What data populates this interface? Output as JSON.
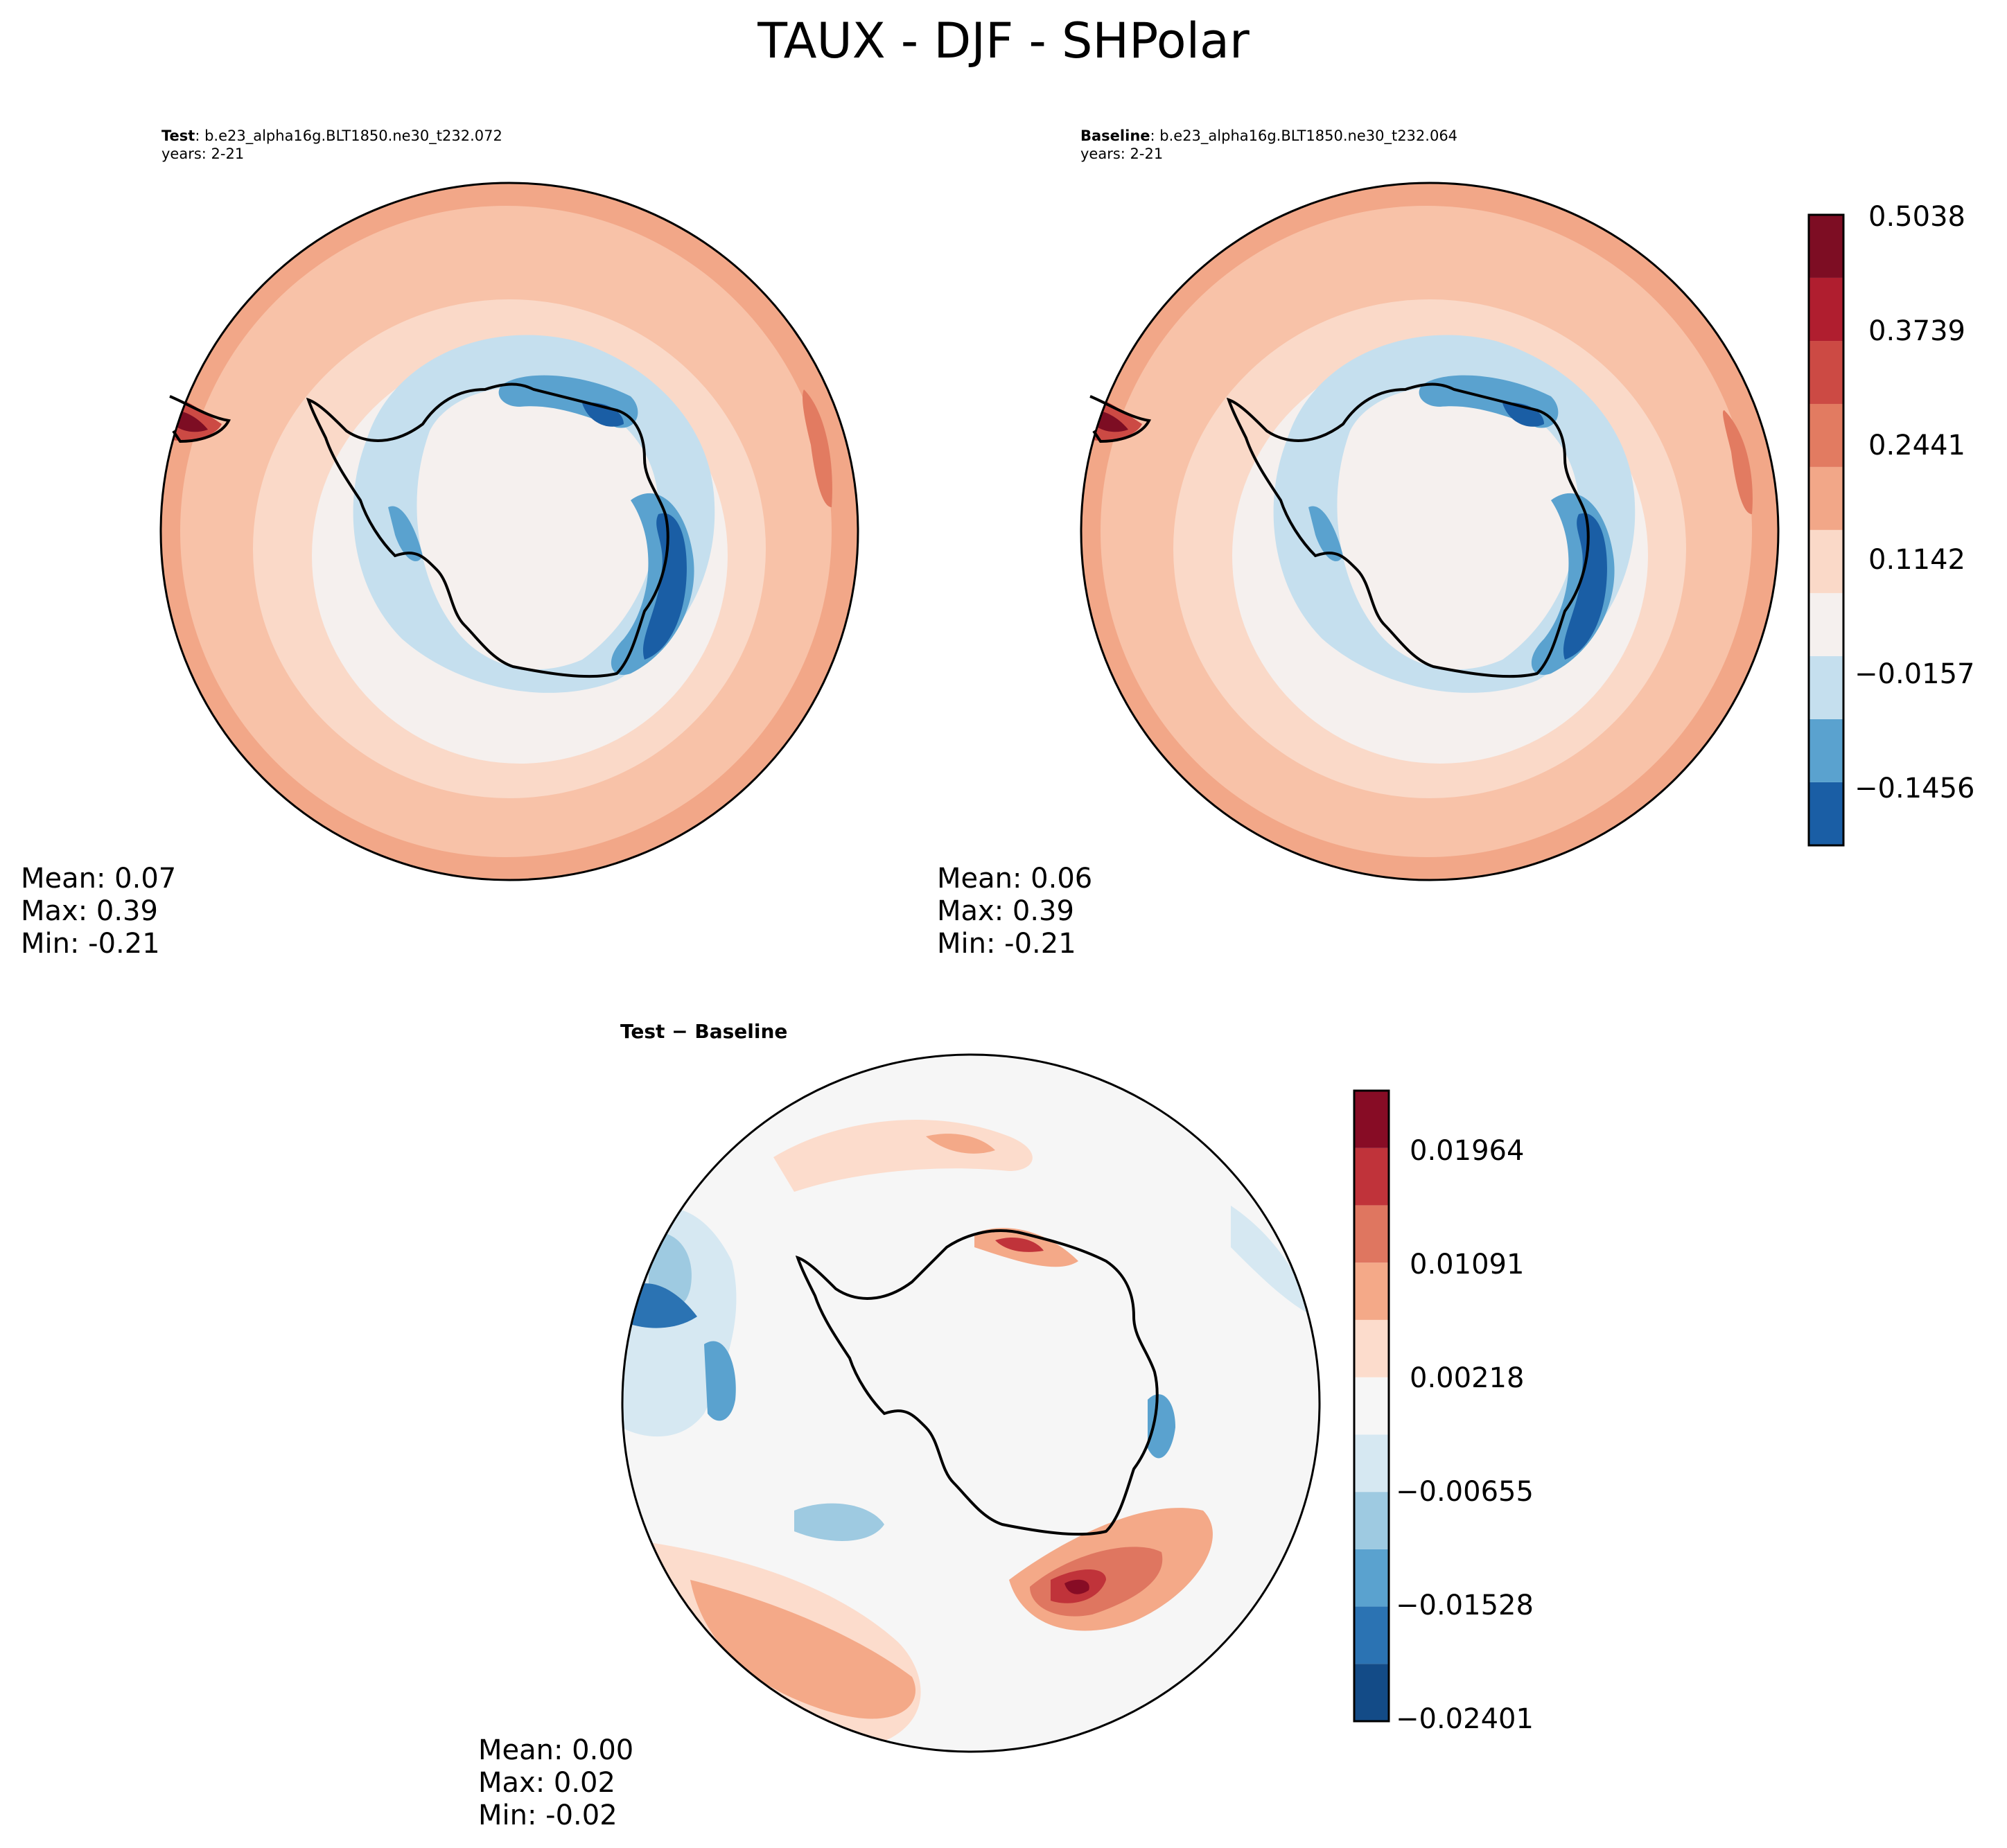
{
  "figure": {
    "title": "TAUX - DJF - SHPolar"
  },
  "panels": {
    "test": {
      "label": "Test",
      "case": ": b.e23_alpha16g.BLT1850.ne30_t232.072",
      "years": "years: 2-21",
      "stats": {
        "mean": "Mean:  0.07",
        "max": "Max:  0.39",
        "min": "Min: -0.21"
      }
    },
    "baseline": {
      "label": "Baseline",
      "case": ": b.e23_alpha16g.BLT1850.ne30_t232.064",
      "years": "years: 2-21",
      "stats": {
        "mean": "Mean:  0.06",
        "max": "Max:  0.39",
        "min": "Min: -0.21"
      }
    },
    "diff": {
      "title": "Test − Baseline",
      "stats": {
        "mean": "Mean:  0.00",
        "max": "Max:  0.02",
        "min": "Min: -0.02"
      }
    }
  },
  "chart_data": [
    {
      "type": "contour-map",
      "projection": "south-polar-stereographic",
      "title": "Test: b.e23_alpha16g.BLT1850.ne30_t232.072",
      "variable": "TAUX",
      "season": "DJF",
      "mean": 0.07,
      "max": 0.39,
      "min": -0.21,
      "levels": [
        -0.2105,
        -0.1456,
        -0.0806,
        -0.0157,
        0.0493,
        0.1142,
        0.1792,
        0.2441,
        0.309,
        0.3739,
        0.4389,
        0.5038
      ],
      "ticks": [
        "0.5038",
        "0.3739",
        "0.2441",
        "0.1142",
        "−0.0157",
        "−0.1456"
      ],
      "colors": [
        "#1a5ea5",
        "#5aa2cf",
        "#c5dfee",
        "#f5f0ee",
        "#fad9c8",
        "#f2a788",
        "#e27b61",
        "#cc4a44",
        "#b01e2f",
        "#7d0d23"
      ]
    },
    {
      "type": "contour-map",
      "projection": "south-polar-stereographic",
      "title": "Baseline: b.e23_alpha16g.BLT1850.ne30_t232.064",
      "variable": "TAUX",
      "season": "DJF",
      "mean": 0.06,
      "max": 0.39,
      "min": -0.21,
      "levels": [
        -0.2105,
        -0.1456,
        -0.0806,
        -0.0157,
        0.0493,
        0.1142,
        0.1792,
        0.2441,
        0.309,
        0.3739,
        0.4389,
        0.5038
      ]
    },
    {
      "type": "contour-map",
      "projection": "south-polar-stereographic",
      "title": "Test − Baseline",
      "mean": 0.0,
      "max": 0.02,
      "min": -0.02,
      "levels": [
        -0.02401,
        -0.01964,
        -0.01528,
        -0.01091,
        -0.00655,
        -0.00218,
        0.00218,
        0.00655,
        0.01091,
        0.01528,
        0.01964,
        0.02401
      ],
      "ticks": [
        "0.01964",
        "0.01091",
        "0.00218",
        "−0.00655",
        "−0.01528",
        "−0.02401"
      ],
      "colors": [
        "#134b87",
        "#2b73b3",
        "#5aa2cf",
        "#9ecae1",
        "#d6e8f2",
        "#f6f6f6",
        "#fcdccc",
        "#f4a988",
        "#df7660",
        "#c0333a",
        "#870c25"
      ]
    }
  ]
}
